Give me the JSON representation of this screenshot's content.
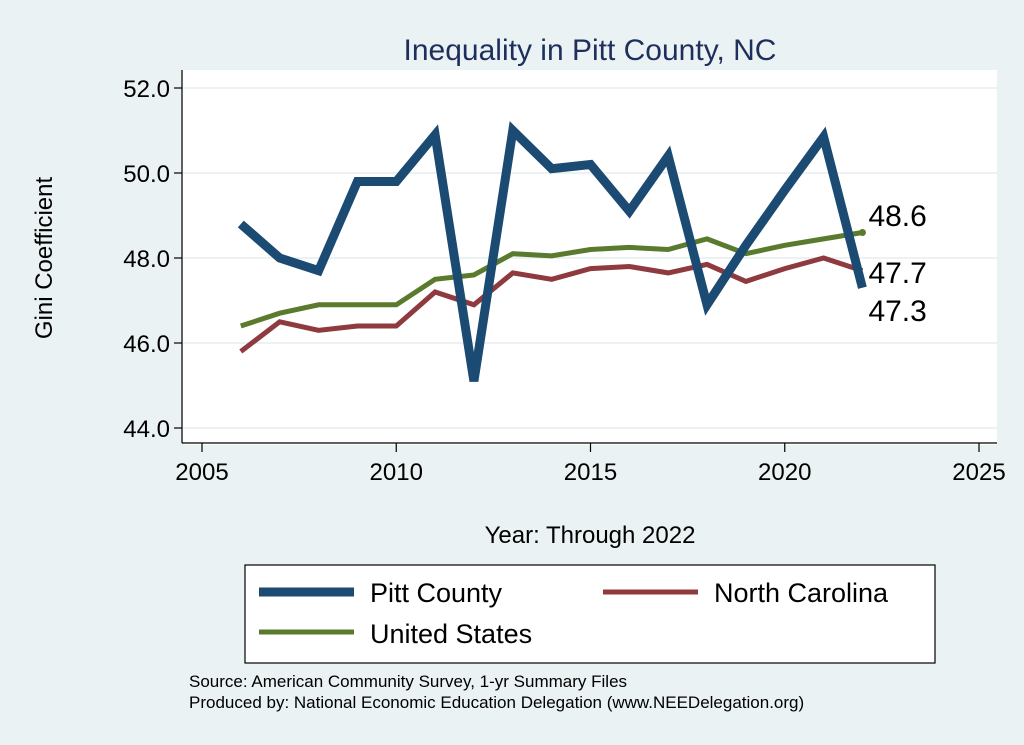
{
  "chart_data": {
    "type": "line",
    "title": "Inequality in Pitt County, NC",
    "xlabel": "Year: Through 2022",
    "ylabel": "Gini Coefficient",
    "xlim": [
      2005,
      2025
    ],
    "ylim": [
      44.0,
      52.0
    ],
    "xticks": [
      "2005",
      "2010",
      "2015",
      "2020",
      "2025"
    ],
    "yticks": [
      "44.0",
      "46.0",
      "48.0",
      "50.0",
      "52.0"
    ],
    "grid": true,
    "x": [
      2006,
      2007,
      2008,
      2009,
      2010,
      2011,
      2012,
      2013,
      2014,
      2015,
      2016,
      2017,
      2018,
      2019,
      2020,
      2021,
      2022
    ],
    "series": [
      {
        "name": "Pitt County",
        "color": "#1b4a72",
        "values": [
          48.8,
          48.0,
          47.7,
          49.8,
          49.8,
          50.9,
          45.1,
          51.0,
          50.1,
          50.2,
          49.1,
          50.4,
          46.9,
          48.3,
          49.6,
          50.85,
          47.3
        ],
        "end_label": "47.3"
      },
      {
        "name": "North Carolina",
        "color": "#8f3a3f",
        "values": [
          45.8,
          46.5,
          46.3,
          46.4,
          46.4,
          47.2,
          46.9,
          47.65,
          47.5,
          47.75,
          47.8,
          47.65,
          47.85,
          47.45,
          47.75,
          48.0,
          47.7
        ],
        "end_label": "47.7"
      },
      {
        "name": "United States",
        "color": "#5a7a2e",
        "values": [
          46.4,
          46.7,
          46.9,
          46.9,
          46.9,
          47.5,
          47.6,
          48.1,
          48.05,
          48.2,
          48.25,
          48.2,
          48.45,
          48.1,
          48.3,
          48.45,
          48.6
        ],
        "end_label": "48.6"
      }
    ],
    "legend": {
      "placement": "bottom",
      "entries": [
        "Pitt County",
        "North Carolina",
        "United States"
      ]
    },
    "notes": [
      "Source: American Community Survey, 1-yr Summary Files",
      "Produced by: National Economic Education Delegation (www.NEEDelegation.org)"
    ]
  }
}
